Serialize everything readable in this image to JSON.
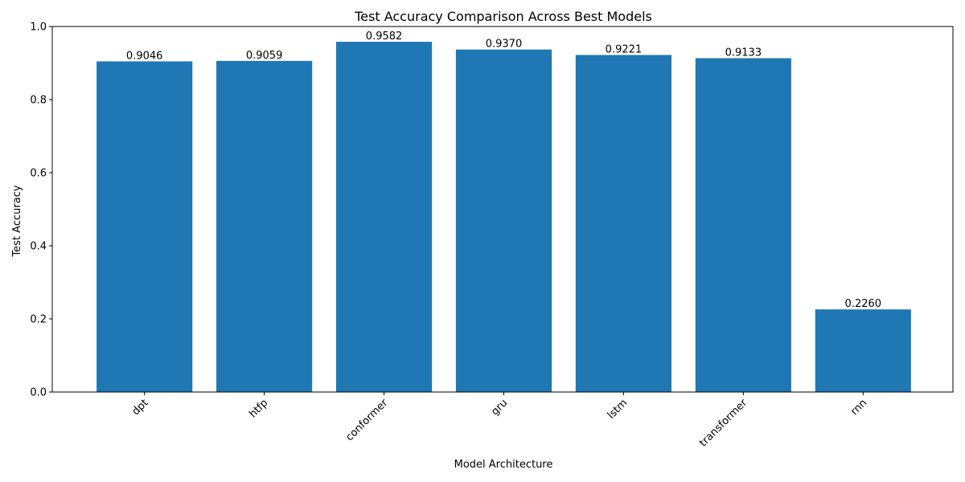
{
  "chart_data": {
    "type": "bar",
    "title": "Test Accuracy Comparison Across Best Models",
    "xlabel": "Model Architecture",
    "ylabel": "Test Accuracy",
    "categories": [
      "dpt",
      "htfp",
      "conformer",
      "gru",
      "lstm",
      "transformer",
      "rnn"
    ],
    "values": [
      0.9046,
      0.9059,
      0.9582,
      0.937,
      0.9221,
      0.9133,
      0.226
    ],
    "value_labels": [
      "0.9046",
      "0.9059",
      "0.9582",
      "0.9370",
      "0.9221",
      "0.9133",
      "0.2260"
    ],
    "ylim": [
      0,
      1.0
    ],
    "yticks": [
      0.0,
      0.2,
      0.4,
      0.6,
      0.8,
      1.0
    ],
    "ytick_labels": [
      "0.0",
      "0.2",
      "0.4",
      "0.6",
      "0.8",
      "1.0"
    ],
    "grid": false,
    "legend": "none",
    "bar_color": "#1f77b4",
    "xtick_rotation_deg": 45
  }
}
